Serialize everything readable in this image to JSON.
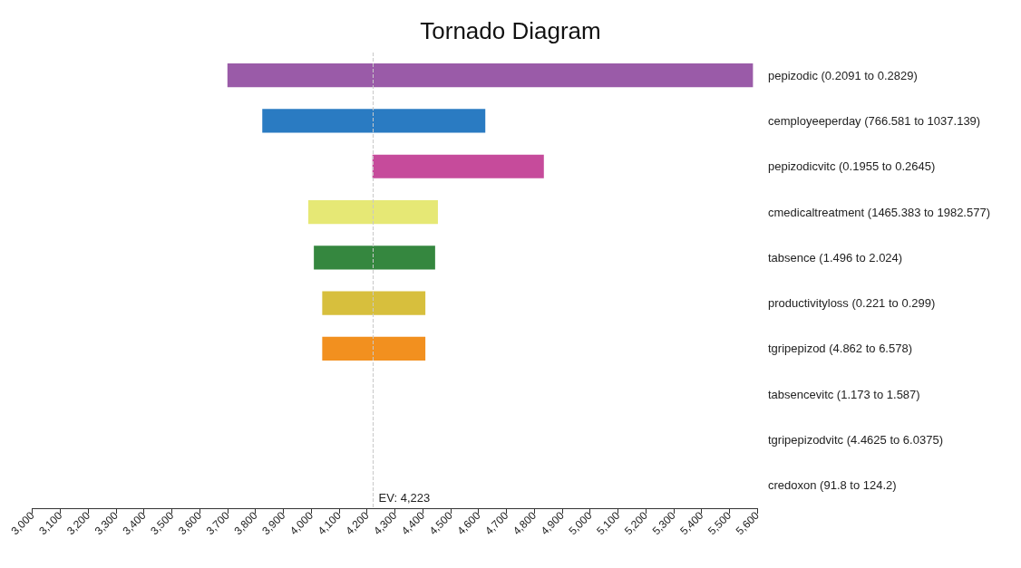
{
  "chart_data": {
    "type": "bar",
    "orientation": "horizontal",
    "title": "Tornado Diagram",
    "categories": [
      "pepizodic (0.2091 to 0.2829)",
      "cemployeeperday (766.581 to 1037.139)",
      "pepizodicvitc (0.1955 to 0.2645)",
      "cmedicaltreatment (1465.383 to 1982.577)",
      "tabsence (1.496 to 2.024)",
      "productivityloss (0.221 to 0.299)",
      "tgripepizod (4.862 to 6.578)",
      "tabsencevitc (1.173 to 1.587)",
      "tgripepizodvitc (4.4625 to 6.0375)",
      "credoxon (91.8 to 124.2)"
    ],
    "base": [
      3700,
      3825,
      4220,
      3990,
      4010,
      4040,
      4040,
      null,
      null,
      null
    ],
    "values": [
      1885,
      800,
      615,
      465,
      435,
      370,
      370,
      null,
      null,
      null
    ],
    "colors": [
      "#9a5ba8",
      "#2a7bc2",
      "#c64b9b",
      "#e6e875",
      "#35873f",
      "#d7bf3d",
      "#f2901f",
      null,
      null,
      null
    ],
    "xlim": [
      3000,
      5600
    ],
    "xticks": [
      {
        "value": 3000,
        "label": "3,000"
      },
      {
        "value": 3100,
        "label": "3,100"
      },
      {
        "value": 3200,
        "label": "3,200"
      },
      {
        "value": 3300,
        "label": "3,300"
      },
      {
        "value": 3400,
        "label": "3,400"
      },
      {
        "value": 3500,
        "label": "3,500"
      },
      {
        "value": 3600,
        "label": "3,600"
      },
      {
        "value": 3700,
        "label": "3,700"
      },
      {
        "value": 3800,
        "label": "3,800"
      },
      {
        "value": 3900,
        "label": "3,900"
      },
      {
        "value": 4000,
        "label": "4,000"
      },
      {
        "value": 4100,
        "label": "4,100"
      },
      {
        "value": 4200,
        "label": "4,200"
      },
      {
        "value": 4300,
        "label": "4,300"
      },
      {
        "value": 4400,
        "label": "4,400"
      },
      {
        "value": 4500,
        "label": "4,500"
      },
      {
        "value": 4600,
        "label": "4,600"
      },
      {
        "value": 4700,
        "label": "4,700"
      },
      {
        "value": 4800,
        "label": "4,800"
      },
      {
        "value": 4900,
        "label": "4,900"
      },
      {
        "value": 5000,
        "label": "5,000"
      },
      {
        "value": 5100,
        "label": "5,100"
      },
      {
        "value": 5200,
        "label": "5,200"
      },
      {
        "value": 5300,
        "label": "5,300"
      },
      {
        "value": 5400,
        "label": "5,400"
      },
      {
        "value": 5500,
        "label": "5,500"
      },
      {
        "value": 5600,
        "label": "5,600"
      }
    ],
    "ref_lines": [
      {
        "axis": "x",
        "value": 4223,
        "label": "EV: 4,223",
        "color": "#c8c8c8",
        "line_style": "dashed"
      }
    ],
    "grid": false
  }
}
